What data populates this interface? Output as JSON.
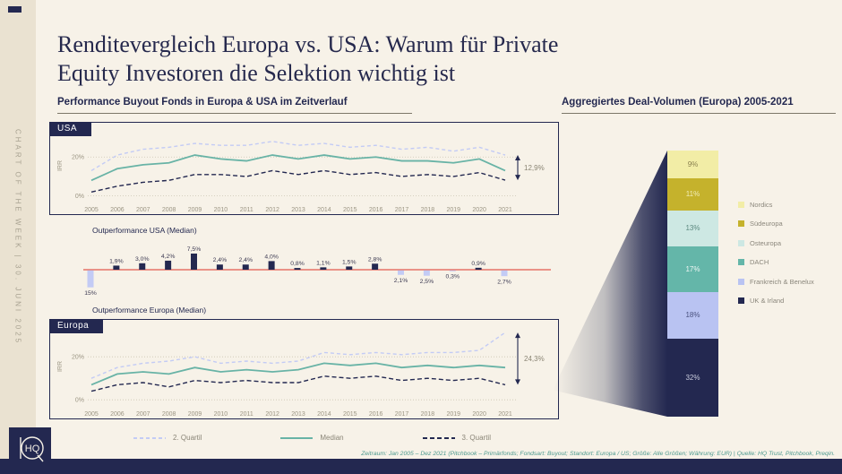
{
  "sidebar": {
    "vertical_text": "CHART OF THE WEEK | 30. JUNI 2025"
  },
  "header": {
    "title_line1": "Renditevergleich Europa vs. USA: Warum für Private",
    "title_line2": "Equity Investoren die Selektion wichtig ist"
  },
  "sections": {
    "left_header": "Performance Buyout Fonds in Europa & USA im Zeitverlauf",
    "right_header": "Aggregiertes Deal-Volumen (Europa) 2005-2021"
  },
  "panels": {
    "usa_label": "USA",
    "europa_label": "Europa"
  },
  "legend": {
    "items": [
      {
        "label": "2. Quartil",
        "color": "#c3cbf5",
        "dash": "4,3"
      },
      {
        "label": "Median",
        "color": "#68b3a6",
        "dash": ""
      },
      {
        "label": "3. Quartil",
        "color": "#232850",
        "dash": "5,3"
      }
    ]
  },
  "footnote": {
    "text": "Zeitraum: Jan 2005 – Dez 2021 (Pitchbook – Primärfonds; Fondsart: Buyout; Standort: Europa / US; Größe: Alle Größen; Währung: EUR) | Quelle: HQ Trust, Pitchbook, Preqin."
  },
  "logo": {
    "text": "HQ"
  },
  "chart_data": [
    {
      "id": "usa_line",
      "type": "line",
      "panel_label": "USA",
      "ylabel": "IRR",
      "yticks": [
        0,
        20
      ],
      "ylim": [
        -2,
        33
      ],
      "x": [
        2005,
        2006,
        2007,
        2008,
        2009,
        2010,
        2011,
        2012,
        2013,
        2014,
        2015,
        2016,
        2017,
        2018,
        2019,
        2020,
        2021
      ],
      "series": [
        {
          "name": "2. Quartil",
          "color": "#c3cbf5",
          "dash": "4,3",
          "values": [
            13,
            21,
            24,
            25,
            27,
            26,
            26,
            28,
            26,
            27,
            25,
            26,
            24,
            25,
            23,
            25,
            21
          ]
        },
        {
          "name": "Median",
          "color": "#68b3a6",
          "dash": "",
          "values": [
            8,
            14,
            16,
            17,
            21,
            19,
            18,
            21,
            19,
            21,
            19,
            20,
            18,
            18,
            17,
            19,
            13
          ]
        },
        {
          "name": "3. Quartil",
          "color": "#232850",
          "dash": "5,3",
          "values": [
            2,
            5,
            7,
            8,
            11,
            11,
            10,
            13,
            11,
            13,
            11,
            12,
            10,
            11,
            10,
            12,
            8.1
          ]
        }
      ],
      "annotation": {
        "label": "12,9%",
        "from_series": 0,
        "to_series": 2,
        "at_x": 2021
      }
    },
    {
      "id": "outperformance_bar",
      "type": "bar",
      "label_top": "Outperformance USA (Median)",
      "label_bottom": "Outperformance Europa (Median)",
      "categories": [
        2005,
        2006,
        2007,
        2008,
        2009,
        2010,
        2011,
        2012,
        2013,
        2014,
        2015,
        2016,
        2017,
        2018,
        2019,
        2020,
        2021
      ],
      "values": [
        -15,
        1.9,
        3.0,
        4.2,
        7.5,
        2.4,
        2.4,
        4.0,
        0.8,
        1.1,
        1.5,
        2.8,
        -2.1,
        -2.5,
        -0.3,
        0.9,
        -2.7
      ],
      "value_labels": [
        "15%",
        "1,9%",
        "3,0%",
        "4,2%",
        "7,5%",
        "2,4%",
        "2,4%",
        "4,0%",
        "0,8%",
        "1,1%",
        "1,5%",
        "2,8%",
        "2,1%",
        "2,5%",
        "0,3%",
        "0,9%",
        "2,7%"
      ],
      "positive_color": "#232850",
      "negative_color": "#c3cbf5",
      "zero_line_color": "#e25a4d"
    },
    {
      "id": "europa_line",
      "type": "line",
      "panel_label": "Europa",
      "ylabel": "IRR",
      "yticks": [
        0,
        20
      ],
      "ylim": [
        -2,
        33
      ],
      "x": [
        2005,
        2006,
        2007,
        2008,
        2009,
        2010,
        2011,
        2012,
        2013,
        2014,
        2015,
        2016,
        2017,
        2018,
        2019,
        2020,
        2021
      ],
      "series": [
        {
          "name": "2. Quartil",
          "color": "#c3cbf5",
          "dash": "4,3",
          "values": [
            10,
            15,
            17,
            18,
            20,
            17,
            18,
            17,
            18,
            22,
            21,
            22,
            21,
            22,
            22,
            23,
            31.3
          ]
        },
        {
          "name": "Median",
          "color": "#68b3a6",
          "dash": "",
          "values": [
            7,
            12,
            13,
            12,
            15,
            13,
            14,
            13,
            14,
            17,
            16,
            17,
            15,
            16,
            15,
            16,
            15
          ]
        },
        {
          "name": "3. Quartil",
          "color": "#232850",
          "dash": "5,3",
          "values": [
            4,
            7,
            8,
            6,
            9,
            8,
            9,
            8,
            8,
            11,
            10,
            11,
            9,
            10,
            9,
            10,
            7
          ]
        }
      ],
      "annotation": {
        "label": "24,3%",
        "from_series": 0,
        "to_series": 2,
        "at_x": 2021
      }
    },
    {
      "id": "deal_volume_stack",
      "type": "stacked-bar",
      "title": "Aggregiertes Deal-Volumen (Europa) 2005-2021",
      "segments": [
        {
          "name": "Nordics",
          "label": "9%",
          "value": 9,
          "color": "#f2eda6",
          "text_color": "#8a8150"
        },
        {
          "name": "Südeuropa",
          "label": "11%",
          "value": 11,
          "color": "#c5b22c",
          "text_color": "#f2edb9"
        },
        {
          "name": "Osteuropa",
          "label": "13%",
          "value": 13,
          "color": "#cde8e3",
          "text_color": "#5d8a81"
        },
        {
          "name": "DACH",
          "label": "17%",
          "value": 17,
          "color": "#64b6a9",
          "text_color": "#f0f7f5"
        },
        {
          "name": "Frankreich & Benelux",
          "label": "18%",
          "value": 18,
          "color": "#b9c3f2",
          "text_color": "#4a517e"
        },
        {
          "name": "UK & Irland",
          "label": "32%",
          "value": 32,
          "color": "#232850",
          "text_color": "#c9ccdd"
        }
      ]
    }
  ]
}
